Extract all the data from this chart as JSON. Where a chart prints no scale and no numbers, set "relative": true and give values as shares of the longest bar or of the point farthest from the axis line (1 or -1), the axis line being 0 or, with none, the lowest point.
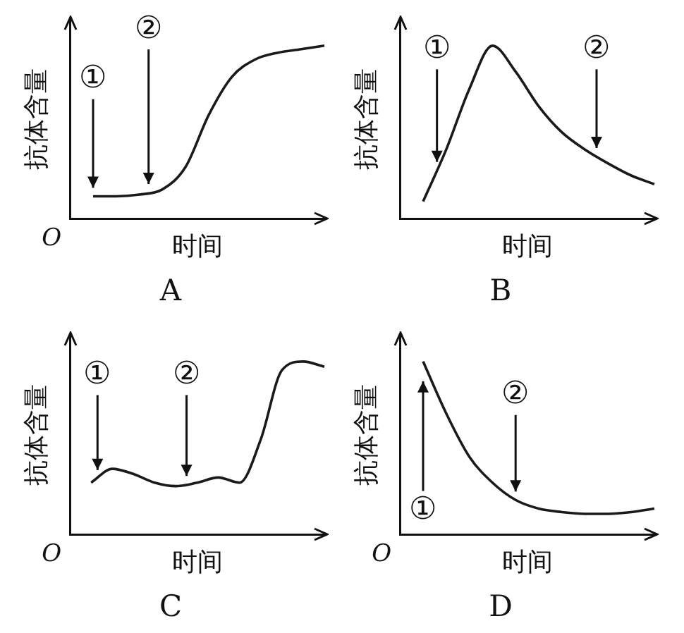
{
  "chart_data": [
    {
      "type": "line",
      "title": "A",
      "xlabel": "时间",
      "ylabel": "抗体含量",
      "relative": true,
      "tick_labels": false,
      "color": "#1a1a1a",
      "annotations": [
        "O",
        "①",
        "②"
      ],
      "categories": [
        null,
        null,
        null,
        null,
        null,
        null,
        null,
        null,
        null,
        null,
        null,
        null
      ],
      "values": [
        null,
        0.13,
        0.13,
        0.14,
        0.17,
        0.3,
        0.6,
        0.82,
        0.92,
        0.96,
        0.98,
        1
      ]
    },
    {
      "type": "line",
      "title": "B",
      "xlabel": "时间",
      "ylabel": "抗体含量",
      "relative": true,
      "tick_labels": false,
      "color": "#1a1a1a",
      "annotations": [
        "①",
        "②"
      ],
      "categories": [
        null,
        null,
        null,
        null,
        null,
        null,
        null,
        null,
        null,
        null,
        null,
        null
      ],
      "values": [
        null,
        0.1,
        0.4,
        0.75,
        1,
        0.85,
        0.65,
        0.5,
        0.4,
        0.32,
        0.25,
        0.2
      ]
    },
    {
      "type": "line",
      "title": "C",
      "xlabel": "时间",
      "ylabel": "抗体含量",
      "relative": true,
      "tick_labels": false,
      "color": "#1a1a1a",
      "annotations": [
        "O",
        "①",
        "②"
      ],
      "categories": [
        null,
        null,
        null,
        null,
        null,
        null,
        null,
        null,
        null,
        null,
        null,
        null,
        null
      ],
      "values": [
        null,
        0.3,
        0.38,
        0.35,
        0.3,
        0.28,
        0.3,
        0.33,
        0.3,
        0.55,
        0.95,
        1,
        0.97
      ]
    },
    {
      "type": "line",
      "title": "D",
      "xlabel": "时间",
      "ylabel": "抗体含量",
      "relative": true,
      "tick_labels": false,
      "color": "#1a1a1a",
      "annotations": [
        "O",
        "①",
        "②"
      ],
      "categories": [
        null,
        null,
        null,
        null,
        null,
        null,
        null,
        null,
        null,
        null,
        null,
        null
      ],
      "values": [
        null,
        1,
        0.7,
        0.45,
        0.3,
        0.2,
        0.15,
        0.13,
        0.12,
        0.12,
        0.13,
        0.15
      ]
    }
  ]
}
